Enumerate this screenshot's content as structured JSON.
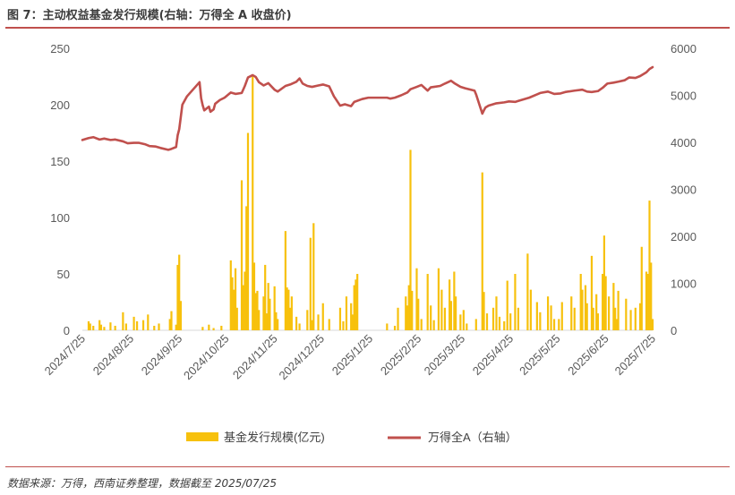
{
  "header": {
    "title": "图 7：主动权益基金发行规模(右轴：万得全 A 收盘价)"
  },
  "footer": {
    "source": "数据来源：万得，西南证券整理，数据截至 2025/07/25"
  },
  "colors": {
    "bar": "#f7c10d",
    "line": "#c0504d",
    "rule": "#c0504d",
    "axis_text": "#595959"
  },
  "chart_data": {
    "type": "bar+line",
    "xlabel": "",
    "ylabel": "",
    "x_ticks": [
      "2024/7/25",
      "2024/8/25",
      "2024/9/25",
      "2024/10/25",
      "2024/11/25",
      "2024/12/25",
      "2025/1/25",
      "2025/2/25",
      "2025/3/25",
      "2025/4/25",
      "2025/5/25",
      "2025/6/25",
      "2025/7/25"
    ],
    "y_left": {
      "min": 0,
      "max": 250,
      "ticks": [
        0,
        50,
        100,
        150,
        200,
        250
      ]
    },
    "y_right": {
      "min": 0,
      "max": 6000,
      "ticks": [
        0,
        1000,
        2000,
        3000,
        4000,
        5000,
        6000
      ]
    },
    "legend": {
      "placement": "bottom",
      "entries": [
        "基金发行规模(亿元)",
        "万得全A（右轴）"
      ]
    },
    "series": [
      {
        "name": "基金发行规模(亿元)",
        "type": "bar",
        "axis": "left",
        "points": [
          [
            "2024-07-29",
            8
          ],
          [
            "2024-07-30",
            6
          ],
          [
            "2024-08-01",
            4
          ],
          [
            "2024-08-05",
            9
          ],
          [
            "2024-08-06",
            5
          ],
          [
            "2024-08-08",
            3
          ],
          [
            "2024-08-12",
            7
          ],
          [
            "2024-08-15",
            4
          ],
          [
            "2024-08-20",
            16
          ],
          [
            "2024-08-22",
            6
          ],
          [
            "2024-08-27",
            12
          ],
          [
            "2024-08-29",
            8
          ],
          [
            "2024-09-02",
            9
          ],
          [
            "2024-09-05",
            14
          ],
          [
            "2024-09-09",
            4
          ],
          [
            "2024-09-12",
            6
          ],
          [
            "2024-09-19",
            10
          ],
          [
            "2024-09-20",
            17
          ],
          [
            "2024-09-23",
            5
          ],
          [
            "2024-09-24",
            58
          ],
          [
            "2024-09-25",
            67
          ],
          [
            "2024-09-26",
            26
          ],
          [
            "2024-10-10",
            3
          ],
          [
            "2024-10-14",
            5
          ],
          [
            "2024-10-17",
            2
          ],
          [
            "2024-10-22",
            4
          ],
          [
            "2024-10-28",
            62
          ],
          [
            "2024-10-29",
            47
          ],
          [
            "2024-10-30",
            36
          ],
          [
            "2024-10-31",
            55
          ],
          [
            "2024-11-01",
            20
          ],
          [
            "2024-11-04",
            133
          ],
          [
            "2024-11-05",
            40
          ],
          [
            "2024-11-06",
            52
          ],
          [
            "2024-11-07",
            110
          ],
          [
            "2024-11-08",
            175
          ],
          [
            "2024-11-11",
            225
          ],
          [
            "2024-11-12",
            60
          ],
          [
            "2024-11-13",
            33
          ],
          [
            "2024-11-14",
            35
          ],
          [
            "2024-11-15",
            18
          ],
          [
            "2024-11-18",
            30
          ],
          [
            "2024-11-19",
            58
          ],
          [
            "2024-11-20",
            15
          ],
          [
            "2024-11-21",
            42
          ],
          [
            "2024-11-22",
            28
          ],
          [
            "2024-11-25",
            39
          ],
          [
            "2024-11-26",
            16
          ],
          [
            "2024-11-27",
            10
          ],
          [
            "2024-12-02",
            88
          ],
          [
            "2024-12-03",
            38
          ],
          [
            "2024-12-04",
            36
          ],
          [
            "2024-12-05",
            20
          ],
          [
            "2024-12-06",
            30
          ],
          [
            "2024-12-09",
            12
          ],
          [
            "2024-12-11",
            6
          ],
          [
            "2024-12-16",
            18
          ],
          [
            "2024-12-18",
            82
          ],
          [
            "2024-12-19",
            9
          ],
          [
            "2024-12-20",
            95
          ],
          [
            "2024-12-23",
            14
          ],
          [
            "2024-12-26",
            24
          ],
          [
            "2024-12-30",
            10
          ],
          [
            "2025-01-06",
            20
          ],
          [
            "2025-01-08",
            8
          ],
          [
            "2025-01-10",
            30
          ],
          [
            "2025-01-13",
            24
          ],
          [
            "2025-01-14",
            14
          ],
          [
            "2025-01-15",
            40
          ],
          [
            "2025-01-16",
            45
          ],
          [
            "2025-01-17",
            50
          ],
          [
            "2025-02-05",
            6
          ],
          [
            "2025-02-10",
            4
          ],
          [
            "2025-02-12",
            20
          ],
          [
            "2025-02-17",
            30
          ],
          [
            "2025-02-18",
            22
          ],
          [
            "2025-02-19",
            40
          ],
          [
            "2025-02-20",
            160
          ],
          [
            "2025-02-21",
            35
          ],
          [
            "2025-02-24",
            55
          ],
          [
            "2025-02-25",
            28
          ],
          [
            "2025-02-27",
            10
          ],
          [
            "2025-03-03",
            50
          ],
          [
            "2025-03-05",
            22
          ],
          [
            "2025-03-07",
            9
          ],
          [
            "2025-03-10",
            55
          ],
          [
            "2025-03-12",
            36
          ],
          [
            "2025-03-14",
            20
          ],
          [
            "2025-03-17",
            45
          ],
          [
            "2025-03-18",
            26
          ],
          [
            "2025-03-20",
            52
          ],
          [
            "2025-03-21",
            30
          ],
          [
            "2025-03-24",
            14
          ],
          [
            "2025-03-26",
            18
          ],
          [
            "2025-03-28",
            6
          ],
          [
            "2025-04-03",
            10
          ],
          [
            "2025-04-07",
            140
          ],
          [
            "2025-04-08",
            34
          ],
          [
            "2025-04-10",
            15
          ],
          [
            "2025-04-14",
            20
          ],
          [
            "2025-04-16",
            30
          ],
          [
            "2025-04-18",
            12
          ],
          [
            "2025-04-21",
            8
          ],
          [
            "2025-04-23",
            44
          ],
          [
            "2025-04-25",
            15
          ],
          [
            "2025-04-28",
            50
          ],
          [
            "2025-04-30",
            20
          ],
          [
            "2025-05-06",
            68
          ],
          [
            "2025-05-08",
            36
          ],
          [
            "2025-05-12",
            25
          ],
          [
            "2025-05-14",
            16
          ],
          [
            "2025-05-19",
            30
          ],
          [
            "2025-05-21",
            22
          ],
          [
            "2025-05-23",
            10
          ],
          [
            "2025-05-26",
            10
          ],
          [
            "2025-05-28",
            25
          ],
          [
            "2025-06-03",
            30
          ],
          [
            "2025-06-05",
            20
          ],
          [
            "2025-06-09",
            50
          ],
          [
            "2025-06-10",
            36
          ],
          [
            "2025-06-12",
            40
          ],
          [
            "2025-06-13",
            24
          ],
          [
            "2025-06-16",
            66
          ],
          [
            "2025-06-17",
            20
          ],
          [
            "2025-06-19",
            32
          ],
          [
            "2025-06-20",
            15
          ],
          [
            "2025-06-23",
            50
          ],
          [
            "2025-06-24",
            84
          ],
          [
            "2025-06-25",
            48
          ],
          [
            "2025-06-27",
            30
          ],
          [
            "2025-06-30",
            42
          ],
          [
            "2025-07-01",
            20
          ],
          [
            "2025-07-02",
            10
          ],
          [
            "2025-07-03",
            35
          ],
          [
            "2025-07-08",
            28
          ],
          [
            "2025-07-11",
            18
          ],
          [
            "2025-07-14",
            20
          ],
          [
            "2025-07-17",
            24
          ],
          [
            "2025-07-18",
            74
          ],
          [
            "2025-07-21",
            52
          ],
          [
            "2025-07-22",
            50
          ],
          [
            "2025-07-23",
            115
          ],
          [
            "2025-07-24",
            60
          ],
          [
            "2025-07-25",
            10
          ]
        ]
      },
      {
        "name": "万得全A（右轴）",
        "type": "line",
        "axis": "right",
        "points": [
          [
            "2024-07-25",
            4050
          ],
          [
            "2024-07-29",
            4090
          ],
          [
            "2024-08-01",
            4110
          ],
          [
            "2024-08-05",
            4060
          ],
          [
            "2024-08-08",
            4080
          ],
          [
            "2024-08-12",
            4050
          ],
          [
            "2024-08-15",
            4060
          ],
          [
            "2024-08-20",
            4020
          ],
          [
            "2024-08-23",
            3980
          ],
          [
            "2024-08-27",
            3990
          ],
          [
            "2024-08-30",
            3990
          ],
          [
            "2024-09-03",
            3960
          ],
          [
            "2024-09-06",
            3920
          ],
          [
            "2024-09-10",
            3910
          ],
          [
            "2024-09-13",
            3880
          ],
          [
            "2024-09-18",
            3840
          ],
          [
            "2024-09-20",
            3860
          ],
          [
            "2024-09-23",
            3900
          ],
          [
            "2024-09-24",
            4150
          ],
          [
            "2024-09-25",
            4280
          ],
          [
            "2024-09-26",
            4540
          ],
          [
            "2024-09-27",
            4800
          ],
          [
            "2024-09-30",
            4980
          ],
          [
            "2024-10-08",
            5280
          ],
          [
            "2024-10-09",
            4940
          ],
          [
            "2024-10-10",
            4790
          ],
          [
            "2024-10-11",
            4680
          ],
          [
            "2024-10-14",
            4760
          ],
          [
            "2024-10-15",
            4650
          ],
          [
            "2024-10-17",
            4700
          ],
          [
            "2024-10-18",
            4820
          ],
          [
            "2024-10-21",
            4900
          ],
          [
            "2024-10-24",
            4950
          ],
          [
            "2024-10-28",
            5060
          ],
          [
            "2024-10-31",
            5030
          ],
          [
            "2024-11-04",
            5050
          ],
          [
            "2024-11-06",
            5200
          ],
          [
            "2024-11-08",
            5380
          ],
          [
            "2024-11-11",
            5430
          ],
          [
            "2024-11-13",
            5390
          ],
          [
            "2024-11-15",
            5280
          ],
          [
            "2024-11-18",
            5210
          ],
          [
            "2024-11-21",
            5260
          ],
          [
            "2024-11-25",
            5120
          ],
          [
            "2024-11-27",
            5080
          ],
          [
            "2024-12-02",
            5200
          ],
          [
            "2024-12-05",
            5230
          ],
          [
            "2024-12-09",
            5290
          ],
          [
            "2024-12-11",
            5360
          ],
          [
            "2024-12-13",
            5250
          ],
          [
            "2024-12-16",
            5200
          ],
          [
            "2024-12-19",
            5180
          ],
          [
            "2024-12-23",
            5210
          ],
          [
            "2024-12-26",
            5230
          ],
          [
            "2024-12-30",
            5190
          ],
          [
            "2025-01-02",
            4980
          ],
          [
            "2025-01-06",
            4780
          ],
          [
            "2025-01-09",
            4810
          ],
          [
            "2025-01-13",
            4770
          ],
          [
            "2025-01-15",
            4860
          ],
          [
            "2025-01-20",
            4920
          ],
          [
            "2025-01-24",
            4950
          ],
          [
            "2025-02-05",
            4950
          ],
          [
            "2025-02-07",
            4930
          ],
          [
            "2025-02-10",
            4950
          ],
          [
            "2025-02-14",
            5000
          ],
          [
            "2025-02-18",
            5060
          ],
          [
            "2025-02-20",
            5130
          ],
          [
            "2025-02-24",
            5180
          ],
          [
            "2025-02-27",
            5220
          ],
          [
            "2025-03-03",
            5100
          ],
          [
            "2025-03-05",
            5170
          ],
          [
            "2025-03-07",
            5180
          ],
          [
            "2025-03-11",
            5200
          ],
          [
            "2025-03-14",
            5250
          ],
          [
            "2025-03-18",
            5310
          ],
          [
            "2025-03-20",
            5260
          ],
          [
            "2025-03-24",
            5180
          ],
          [
            "2025-03-27",
            5150
          ],
          [
            "2025-04-02",
            5100
          ],
          [
            "2025-04-03",
            5020
          ],
          [
            "2025-04-07",
            4610
          ],
          [
            "2025-04-08",
            4680
          ],
          [
            "2025-04-09",
            4740
          ],
          [
            "2025-04-11",
            4780
          ],
          [
            "2025-04-16",
            4830
          ],
          [
            "2025-04-21",
            4850
          ],
          [
            "2025-04-24",
            4870
          ],
          [
            "2025-04-28",
            4860
          ],
          [
            "2025-04-30",
            4880
          ],
          [
            "2025-05-07",
            4950
          ],
          [
            "2025-05-12",
            5020
          ],
          [
            "2025-05-14",
            5050
          ],
          [
            "2025-05-19",
            5080
          ],
          [
            "2025-05-23",
            5030
          ],
          [
            "2025-05-27",
            5040
          ],
          [
            "2025-05-30",
            5070
          ],
          [
            "2025-06-05",
            5100
          ],
          [
            "2025-06-10",
            5120
          ],
          [
            "2025-06-13",
            5080
          ],
          [
            "2025-06-16",
            5070
          ],
          [
            "2025-06-20",
            5090
          ],
          [
            "2025-06-23",
            5160
          ],
          [
            "2025-06-26",
            5250
          ],
          [
            "2025-06-30",
            5270
          ],
          [
            "2025-07-03",
            5290
          ],
          [
            "2025-07-07",
            5320
          ],
          [
            "2025-07-10",
            5380
          ],
          [
            "2025-07-14",
            5370
          ],
          [
            "2025-07-17",
            5410
          ],
          [
            "2025-07-21",
            5490
          ],
          [
            "2025-07-23",
            5560
          ],
          [
            "2025-07-25",
            5600
          ]
        ]
      }
    ]
  }
}
